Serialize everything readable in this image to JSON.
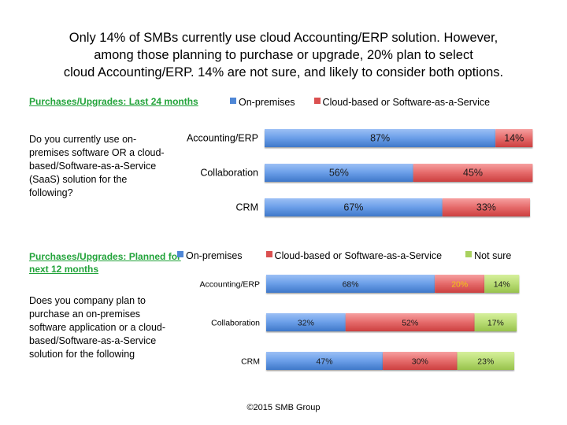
{
  "headline": [
    "Only 14% of SMBs currently use cloud Accounting/ERP solution. However,",
    "among those planning to purchase or upgrade, 20% plan to select",
    "cloud Accounting/ERP. 14% are not sure, and likely to consider both options."
  ],
  "colors": {
    "on_premises": "#4f87d6",
    "cloud": "#db5050",
    "not_sure": "#a9d15f",
    "section_title": "#22a33a",
    "highlight_label": "#f2c811"
  },
  "footer": "©2015 SMB Group",
  "chart_data": [
    {
      "type": "bar",
      "orientation": "horizontal",
      "stacked": true,
      "section_title": "Purchases/Upgrades: Last 24 months",
      "question": "Do you currently use on-premises software OR a cloud-based/Software-as-a-Service (SaaS) solution for the following?",
      "categories": [
        "Accounting/ERP",
        "Collaboration",
        "CRM"
      ],
      "series": [
        {
          "name": "On-premises",
          "color": "#4f87d6",
          "values": [
            87,
            56,
            67
          ],
          "labels": [
            "87%",
            "56%",
            "67%"
          ]
        },
        {
          "name": "Cloud-based or Software-as-a-Service",
          "color": "#db5050",
          "values": [
            14,
            45,
            33
          ],
          "labels": [
            "14%",
            "45%",
            "33%"
          ]
        }
      ],
      "legend_position": "top",
      "grid": false
    },
    {
      "type": "bar",
      "orientation": "horizontal",
      "stacked": true,
      "section_title": "Purchases/Upgrades: Planned for next 12 months",
      "question": "Does you company plan to purchase an on-premises software application or a cloud-based/Software-as-a-Service solution for the following",
      "categories": [
        "Accounting/ERP",
        "Collaboration",
        "CRM"
      ],
      "series": [
        {
          "name": "On-premises",
          "color": "#4f87d6",
          "values": [
            68,
            32,
            47
          ],
          "labels": [
            "68%",
            "32%",
            "47%"
          ]
        },
        {
          "name": "Cloud-based or Software-as-a-Service",
          "color": "#db5050",
          "values": [
            20,
            52,
            30
          ],
          "labels": [
            "20%",
            "52%",
            "30%"
          ]
        },
        {
          "name": "Not sure",
          "color": "#a9d15f",
          "values": [
            14,
            17,
            23
          ],
          "labels": [
            "14%",
            "17%",
            "23%"
          ]
        }
      ],
      "highlighted_labels": [
        {
          "series": 1,
          "category": 0,
          "color": "#f2c811"
        }
      ],
      "legend_position": "top",
      "grid": false
    }
  ]
}
